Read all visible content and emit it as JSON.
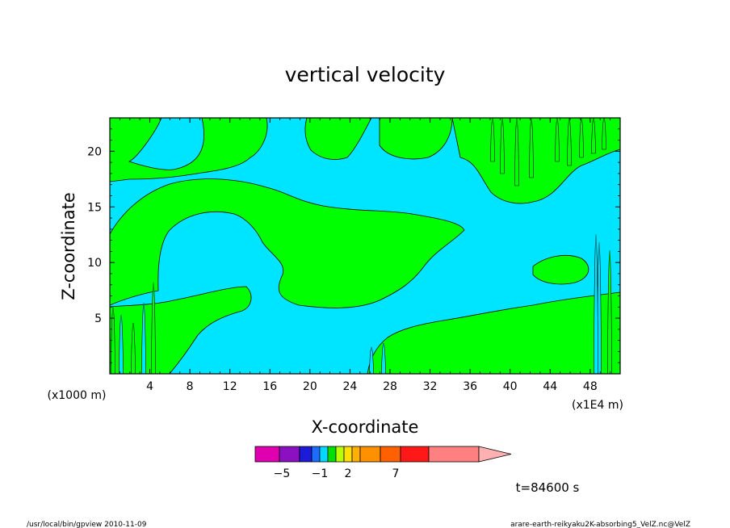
{
  "chart_data": {
    "type": "contour",
    "title": "vertical velocity",
    "xlabel": "X-coordinate",
    "ylabel": "Z-coordinate",
    "x_unit_note": "(x1E4 m)",
    "y_unit_note": "(x1000 m)",
    "x_ticks": [
      "4",
      "8",
      "12",
      "16",
      "20",
      "24",
      "28",
      "32",
      "36",
      "40",
      "44",
      "48"
    ],
    "y_ticks": [
      "5",
      "10",
      "15",
      "20"
    ],
    "xlim": [
      0,
      51
    ],
    "ylim": [
      0,
      23
    ],
    "time_label": "t=84600 s",
    "colorbar": {
      "ticks": [
        {
          "label": "−5",
          "value": -5
        },
        {
          "label": "−1",
          "value": -1
        },
        {
          "label": "2",
          "value": 2
        },
        {
          "label": "7",
          "value": 7
        }
      ],
      "colors": [
        "#e000b0",
        "#8a10c0",
        "#1c1cd8",
        "#1c6cff",
        "#00d8ff",
        "#00e000",
        "#b8ff00",
        "#ffe000",
        "#ffb000",
        "#ff9000",
        "#ff6000",
        "#ff1818",
        "#ff8080",
        "#ffb0b0"
      ]
    },
    "fill_colors": {
      "negative": "#00e5ff",
      "positive": "#00ff00"
    }
  },
  "footer": {
    "left": "/usr/local/bin/gpview   2010-11-09",
    "right": "arare-earth-reikyaku2K-absorbing5_VelZ.nc@VelZ"
  }
}
